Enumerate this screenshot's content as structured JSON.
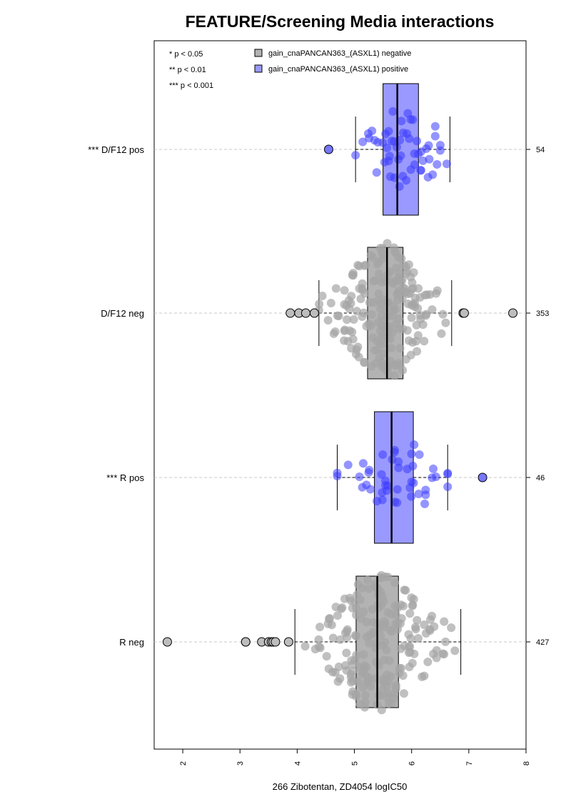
{
  "chart_data": {
    "type": "boxplot-beeswarm",
    "title": "FEATURE/Screening Media interactions",
    "xlabel": "266 Zibotentan, ZD4054 logIC50",
    "xlim": [
      1.5,
      8.0
    ],
    "x_ticks": [
      "2",
      "3",
      "4",
      "5",
      "6",
      "7",
      "8"
    ],
    "orientation": "horizontal",
    "significance_legend": [
      "* p < 0.05",
      "** p < 0.01",
      "*** p < 0.001"
    ],
    "series_legend": [
      {
        "name": "gain_cnaPANCAN363_(ASXL1) negative",
        "color": "#b3b3b3"
      },
      {
        "name": "gain_cnaPANCAN363_(ASXL1) positive",
        "color": "#9999ff"
      }
    ],
    "groups": [
      {
        "label": "*** D/F12 pos",
        "n": "54",
        "status": "positive",
        "whisker_low": 5.02,
        "q1": 5.5,
        "median": 5.75,
        "q3": 6.12,
        "whisker_high": 6.67,
        "outliers": [
          4.55
        ],
        "spread_low": 5.02,
        "spread_high": 6.67
      },
      {
        "label": "D/F12 neg",
        "n": "353",
        "status": "negative",
        "whisker_low": 4.38,
        "q1": 5.23,
        "median": 5.57,
        "q3": 5.85,
        "whisker_high": 6.7,
        "outliers": [
          3.88,
          4.03,
          4.15,
          4.3,
          6.9,
          6.92,
          7.77
        ],
        "spread_low": 4.38,
        "spread_high": 6.7
      },
      {
        "label": "*** R pos",
        "n": "46",
        "status": "positive",
        "whisker_low": 4.7,
        "q1": 5.35,
        "median": 5.65,
        "q3": 6.03,
        "whisker_high": 6.63,
        "outliers": [
          7.24
        ],
        "spread_low": 4.7,
        "spread_high": 6.63
      },
      {
        "label": "R neg",
        "n": "427",
        "status": "negative",
        "whisker_low": 3.96,
        "q1": 5.03,
        "median": 5.4,
        "q3": 5.77,
        "whisker_high": 6.86,
        "outliers": [
          1.73,
          3.1,
          3.1,
          3.38,
          3.5,
          3.55,
          3.58,
          3.62,
          3.85
        ],
        "spread_low": 3.96,
        "spread_high": 6.86
      }
    ],
    "grid": "horizontal dashed per group",
    "legend_placement": "top-left"
  }
}
